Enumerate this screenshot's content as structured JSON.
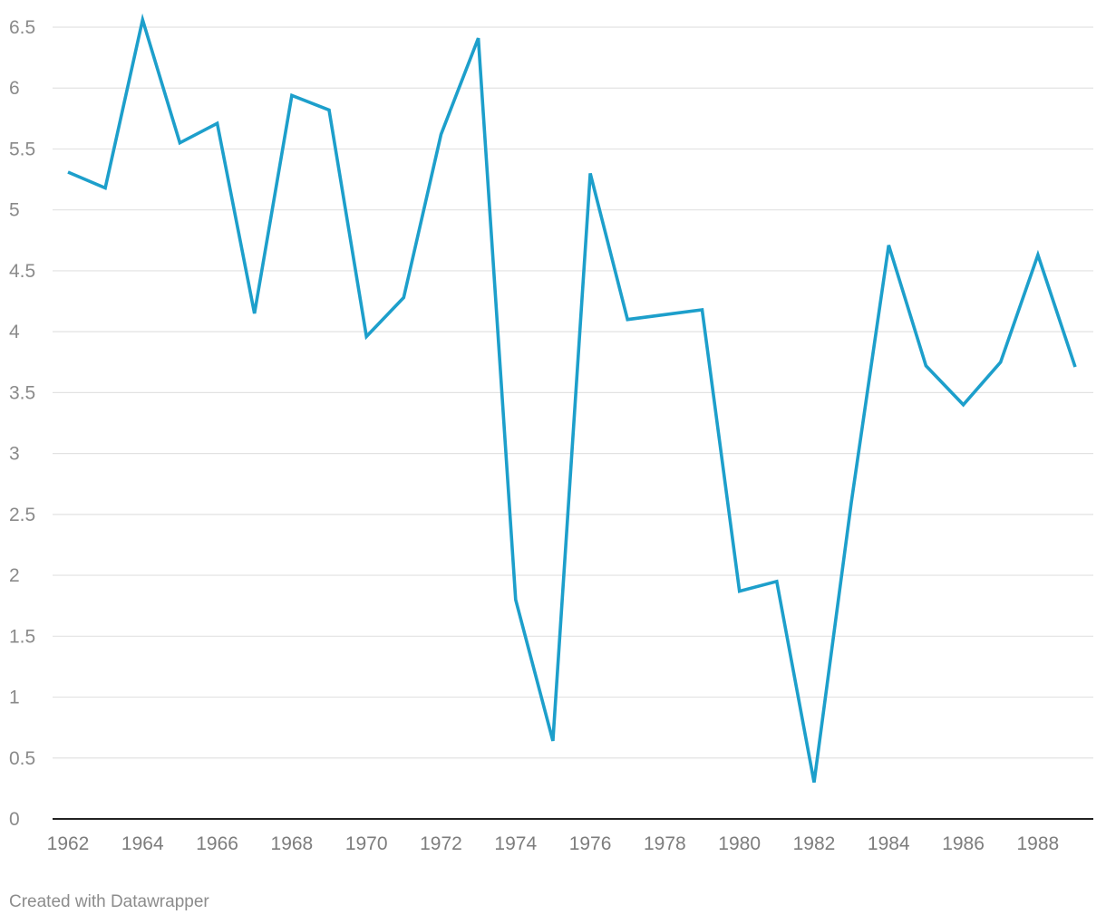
{
  "chart_data": {
    "type": "line",
    "x": [
      1962,
      1963,
      1964,
      1965,
      1966,
      1967,
      1968,
      1969,
      1970,
      1971,
      1972,
      1973,
      1974,
      1975,
      1976,
      1977,
      1978,
      1979,
      1980,
      1981,
      1982,
      1983,
      1984,
      1985,
      1986,
      1987,
      1988,
      1989
    ],
    "series": [
      {
        "values": [
          5.31,
          5.18,
          6.56,
          5.55,
          5.71,
          4.15,
          5.94,
          5.82,
          3.96,
          4.28,
          5.62,
          6.41,
          1.8,
          0.64,
          5.3,
          4.1,
          4.14,
          4.18,
          1.87,
          1.95,
          0.3,
          2.6,
          4.71,
          3.72,
          3.4,
          3.75,
          4.63,
          3.71
        ],
        "color": "#1d9fcb"
      }
    ],
    "xlim": [
      1962,
      1989
    ],
    "ylim": [
      0,
      6.5
    ],
    "y_ticks": [
      0,
      0.5,
      1,
      1.5,
      2,
      2.5,
      3,
      3.5,
      4,
      4.5,
      5,
      5.5,
      6,
      6.5
    ],
    "y_tick_labels": [
      "0",
      "0.5",
      "1",
      "1.5",
      "2",
      "2.5",
      "3",
      "3.5",
      "4",
      "4.5",
      "5",
      "5.5",
      "6",
      "6.5"
    ],
    "x_ticks": [
      1962,
      1964,
      1966,
      1968,
      1970,
      1972,
      1974,
      1976,
      1978,
      1980,
      1982,
      1984,
      1986,
      1988
    ],
    "x_tick_labels": [
      "1962",
      "1964",
      "1966",
      "1968",
      "1970",
      "1972",
      "1974",
      "1976",
      "1978",
      "1980",
      "1982",
      "1984",
      "1986",
      "1988"
    ],
    "grid": true,
    "title": "",
    "xlabel": "",
    "ylabel": ""
  },
  "footer": {
    "credit": "Created with Datawrapper"
  }
}
